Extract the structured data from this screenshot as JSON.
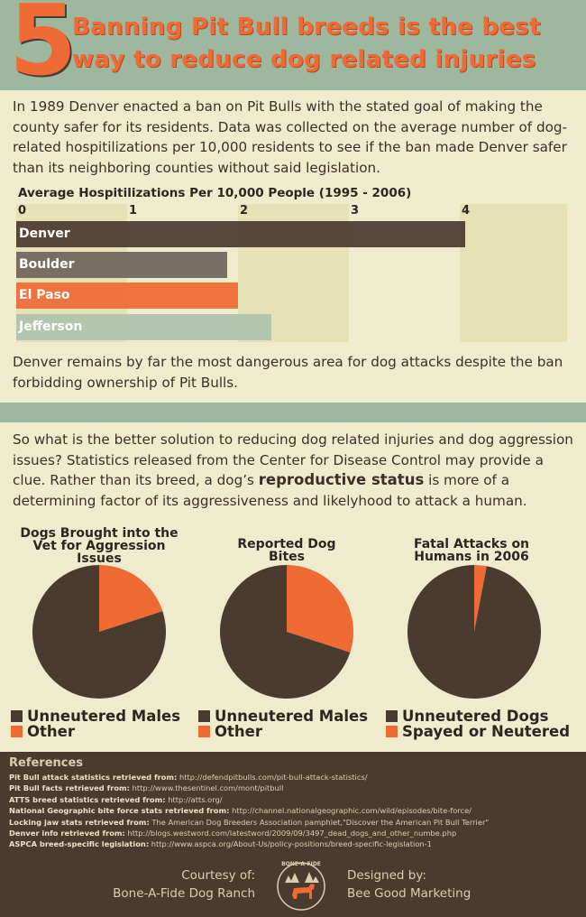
{
  "header": {
    "number": "5",
    "title_line1": "Banning Pit Bull breeds is the best",
    "title_line2": "way to reduce dog related injuries"
  },
  "intro": "In 1989 Denver enacted a ban on Pit Bulls with the stated goal of making the county safer for its residents. Data was collected on the average number of dog-related hospitilizations per 10,000 residents to see if the ban made Denver safer than its neighboring counties without said legislation.",
  "bar_conclusion": "Denver remains by far the most dangerous area for dog attacks despite the ban forbidding ownership of Pit Bulls.",
  "section2": {
    "before": "So what is the better solution to reducing dog related injuries and dog aggression issues? Statistics released from the Center for Disease Control may provide a clue. Rather than its breed, a dog’s ",
    "emphasis": "reproductive status",
    "after": " is more of a determining factor of its aggressiveness and likelyhood to attack a human."
  },
  "colors": {
    "dark": "#4a3b2f",
    "orange": "#ef6a35",
    "green": "#9db89e",
    "cream": "#efeccd"
  },
  "chart_data": [
    {
      "type": "bar",
      "orientation": "horizontal",
      "title": "Average Hospitilizations Per 10,000 People (1995 - 2006)",
      "categories": [
        "Denver",
        "Boulder",
        "El Paso",
        "Jefferson"
      ],
      "values": [
        4.05,
        1.9,
        2.0,
        2.3
      ],
      "colors": [
        "#4a3b2f",
        "#6f655c",
        "#ef6a35",
        "#aec3ac"
      ],
      "xlim": [
        0,
        4
      ],
      "xticks": [
        "0",
        "1",
        "2",
        "3",
        "4"
      ],
      "grid": false
    },
    {
      "type": "pie",
      "title": "Dogs Brought into the Vet for Aggression Issues",
      "labels": [
        "Unneutered Males",
        "Other"
      ],
      "values": [
        80,
        20
      ],
      "colors": [
        "#4a3b2f",
        "#ef6a35"
      ],
      "legend": "bottom"
    },
    {
      "type": "pie",
      "title": "Reported Dog Bites",
      "labels": [
        "Unneutered Males",
        "Other"
      ],
      "values": [
        70,
        30
      ],
      "colors": [
        "#4a3b2f",
        "#ef6a35"
      ],
      "legend": "bottom"
    },
    {
      "type": "pie",
      "title": "Fatal Attacks on Humans in 2006",
      "labels": [
        "Unneutered Dogs",
        "Spayed or Neutered"
      ],
      "values": [
        97,
        3
      ],
      "colors": [
        "#4a3b2f",
        "#ef6a35"
      ],
      "legend": "bottom"
    }
  ],
  "references": {
    "heading": "References",
    "items": [
      {
        "label": "Pit Bull attack statistics retrieved from:",
        "value": "http://defendpitbulls.com/pit-bull-attack-statistics/"
      },
      {
        "label": "Pit Bull facts retrieved from:",
        "value": "http://www.thesentinel.com/mont/pitbull"
      },
      {
        "label": "ATTS breed statistics retrieved from:",
        "value": "http://atts.org/"
      },
      {
        "label": "National Geographic bite force stats retrieved from:",
        "value": "http://channel.nationalgeographic.com/wild/episodes/bite-force/"
      },
      {
        "label": "Locking jaw stats retrieved from:",
        "value": "The American Dog Breeders Association pamphlet,\"Discover the American Pit Bull Terrier\""
      },
      {
        "label": "Denver info retrieved from:",
        "value": "http://blogs.westword.com/latestword/2009/09/3497_dead_dogs_and_other_numbe.php"
      },
      {
        "label": "ASPCA breed-specific legislation:",
        "value": "http://www.aspca.org/About-Us/policy-positions/breed-specific-legislation-1"
      }
    ]
  },
  "credits": {
    "courtesy_label": "Courtesy of:",
    "courtesy_name": "Bone-A-Fide Dog Ranch",
    "designed_label": "Designed by:",
    "designed_name": "Bee Good Marketing",
    "logo_text": "BONE-A-FIDE"
  }
}
